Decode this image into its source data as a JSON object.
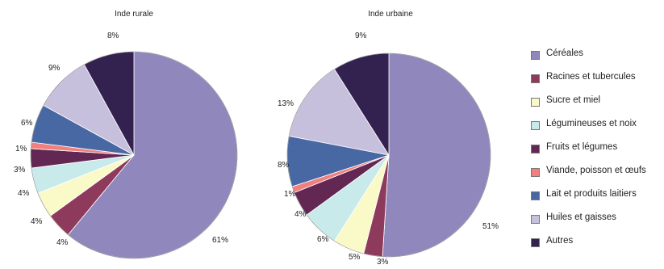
{
  "chart_data": [
    {
      "type": "pie",
      "title": "Inde rurale",
      "categories": [
        "Céréales",
        "Racines et tubercules",
        "Sucre et miel",
        "Légumineuses et noix",
        "Fruits et légumes",
        "Viande, poisson et œufs",
        "Lait et produits laitiers",
        "Huiles et gaisses",
        "Autres"
      ],
      "values": [
        61,
        4,
        4,
        4,
        3,
        1,
        6,
        9,
        8
      ],
      "value_labels": [
        "61%",
        "4%",
        "4%",
        "4%",
        "3%",
        "1%",
        "6%",
        "9%",
        "8%"
      ]
    },
    {
      "type": "pie",
      "title": "Inde urbaine",
      "categories": [
        "Céréales",
        "Racines et tubercules",
        "Sucre et miel",
        "Légumineuses et noix",
        "Fruits et légumes",
        "Viande, poisson et œufs",
        "Lait et produits laitiers",
        "Huiles et gaisses",
        "Autres"
      ],
      "values": [
        51,
        3,
        5,
        6,
        4,
        1,
        8,
        13,
        9
      ],
      "value_labels": [
        "51%",
        "3%",
        "5%",
        "6%",
        "4%",
        "1%",
        "8%",
        "13%",
        "9%"
      ]
    }
  ],
  "legend": {
    "placement": "right",
    "items": [
      {
        "label": "Céréales",
        "color": "#9088bc"
      },
      {
        "label": "Racines et tubercules",
        "color": "#8e3a5c"
      },
      {
        "label": "Sucre et miel",
        "color": "#fafac8"
      },
      {
        "label": "Légumineuses et noix",
        "color": "#c8eaea"
      },
      {
        "label": "Fruits et légumes",
        "color": "#622752"
      },
      {
        "label": "Viande, poisson et œufs",
        "color": "#f08080"
      },
      {
        "label": "Lait et produits laitiers",
        "color": "#4868a4"
      },
      {
        "label": "Huiles et gaisses",
        "color": "#c7c0dd"
      },
      {
        "label": "Autres",
        "color": "#33224f"
      }
    ]
  }
}
